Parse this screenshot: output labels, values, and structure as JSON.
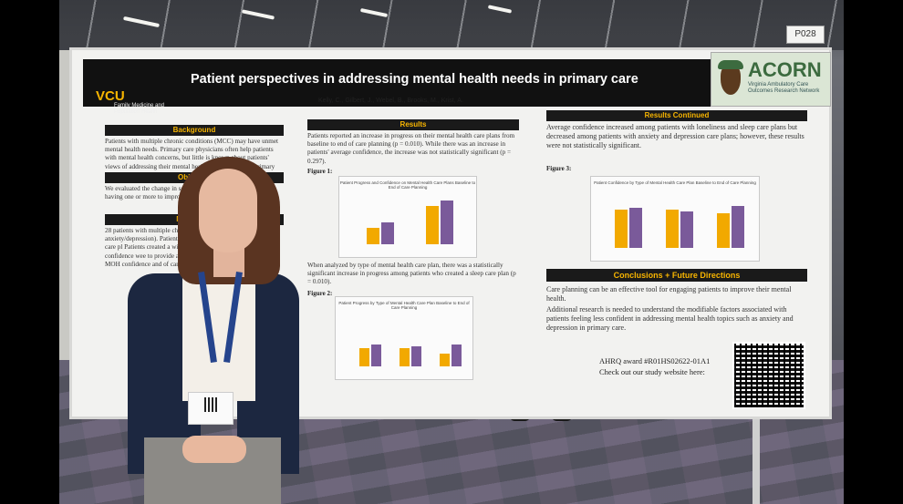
{
  "poster": {
    "booth_tag": "P028",
    "title": "Patient perspectives in addressing mental health needs in primary care",
    "authors": "Kelly, C., Gilbert, J., Webel, B., Brooks, M., Krist, A.",
    "vcu_logo": "VCU",
    "vcu_department": "Family Medicine and Population Health",
    "acorn_name": "ACORN",
    "acorn_full": "Virginia Ambulatory Care Outcomes Research Network",
    "sections": {
      "background": "Background",
      "objective": "Objective",
      "methods": "Methods a",
      "results": "Results",
      "results_continued": "Results Continued",
      "conclusions": "Conclusions + Future Directions"
    },
    "background_text": "Patients with multiple chronic conditions (MCC) may have unmet mental health needs. Primary care physicians often help patients with mental health concerns, but little is known about patients' views of addressing their mental health needs within the primary care",
    "objective_text": "We evaluated the change in self-reported patients identified as having one or more to improve these risks by creating a per",
    "methods_text": "28 patients with multiple chronic co improve their mental health anxiety/depression). Patients worked with a patie Assessment and care pl Patients created a within MOHR Patients were asl confidence wee to provide addi Together, pat completed or From MOH confidence and of care",
    "results_text_1": "Patients reported an increase in progress on their mental health care plans from baseline to end of care planning (p = 0.010). While there was an increase in patients' average confidence, the increase was not statistically significant (p = 0.297).",
    "results_text_2": "When analyzed by type of mental health care plan, there was a statistically significant increase in progress among patients who created a sleep care plan (p = 0.010).",
    "results_cont_text": "Average confidence increased among patients with loneliness and sleep care plans but decreased among patients with anxiety and depression care plans; however, these results were not statistically significant.",
    "conclusion_1": "Care planning can be an effective tool for engaging patients to improve their mental health.",
    "conclusion_2": "Additional research is needed to understand the modifiable factors associated with patients feeling less confident in addressing mental health topics such as anxiety and depression in primary care.",
    "figure1_label": "Figure 1:",
    "figure2_label": "Figure 2:",
    "figure3_label": "Figure 3:",
    "fig1_title": "Patient Progress and Confidence on Mental Health Care Plans Baseline to End of Care Planning",
    "fig2_title": "Patient Progress by Type of Mental Health Care Plan Baseline to End of Care Planning",
    "fig3_title": "Patient Confidence by Type of Mental Health Care Plan Baseline to End of Care Planning",
    "award_line": "AHRQ award #R01HS02622-01A1",
    "website_line": "Check out our study website here:"
  },
  "colors": {
    "gold": "#f2a900",
    "purple": "#7a5a9a",
    "banner": "#111111"
  },
  "icons": [
    "acorn-logo-icon",
    "vcu-logo-icon",
    "qr-code-icon"
  ]
}
